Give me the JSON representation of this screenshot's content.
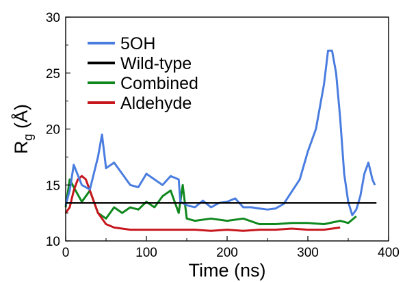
{
  "chart_data": {
    "type": "line",
    "xlabel": "Time (ns)",
    "ylabel_main": "R",
    "ylabel_sub": "g",
    "ylabel_unit": " (Å)",
    "xlim": [
      0,
      400
    ],
    "ylim": [
      10,
      30
    ],
    "xticks": [
      0,
      100,
      200,
      300,
      400
    ],
    "yticks": [
      10,
      15,
      20,
      25,
      30
    ],
    "grid": false,
    "legend_position": "top-left",
    "series": [
      {
        "name": "5OH",
        "color": "#4a7de0",
        "x": [
          0,
          5,
          10,
          20,
          30,
          40,
          45,
          50,
          60,
          70,
          80,
          90,
          100,
          110,
          120,
          130,
          140,
          142,
          150,
          160,
          170,
          180,
          190,
          200,
          210,
          220,
          230,
          240,
          250,
          260,
          270,
          280,
          290,
          300,
          310,
          320,
          325,
          330,
          335,
          340,
          345,
          350,
          355,
          360,
          365,
          370,
          375,
          380,
          383
        ],
        "y": [
          13.2,
          14.5,
          16.8,
          15.0,
          14.6,
          17.5,
          19.5,
          16.5,
          17.0,
          16.0,
          15.0,
          14.8,
          16.0,
          15.5,
          15.0,
          15.8,
          15.5,
          13.5,
          13.2,
          13.0,
          13.6,
          13.0,
          13.4,
          13.5,
          13.8,
          13.0,
          13.0,
          12.9,
          12.8,
          12.9,
          13.3,
          14.4,
          15.5,
          18.0,
          20.0,
          24.0,
          27.0,
          27.0,
          25.0,
          21.0,
          16.0,
          13.5,
          12.3,
          12.8,
          14.0,
          16.0,
          17.0,
          15.5,
          15.0
        ]
      },
      {
        "name": "Wild-type",
        "color": "#000000",
        "x": [
          0,
          385
        ],
        "y": [
          13.4,
          13.4
        ]
      },
      {
        "name": "Combined",
        "color": "#10881e",
        "x": [
          0,
          5,
          10,
          20,
          30,
          40,
          50,
          60,
          70,
          80,
          90,
          100,
          110,
          120,
          130,
          140,
          145,
          150,
          160,
          180,
          200,
          220,
          240,
          260,
          280,
          300,
          320,
          340,
          350,
          360
        ],
        "y": [
          13.0,
          15.5,
          14.8,
          13.5,
          14.5,
          12.5,
          12.0,
          13.0,
          12.5,
          13.0,
          12.8,
          13.5,
          13.0,
          14.0,
          14.5,
          12.5,
          15.0,
          12.0,
          11.8,
          12.0,
          11.8,
          12.0,
          11.5,
          11.5,
          11.6,
          11.6,
          11.5,
          11.8,
          11.6,
          12.2
        ]
      },
      {
        "name": "Aldehyde",
        "color": "#c8161d",
        "x": [
          0,
          5,
          10,
          15,
          20,
          25,
          30,
          40,
          50,
          60,
          80,
          100,
          120,
          140,
          160,
          180,
          200,
          220,
          240,
          260,
          280,
          300,
          320,
          340
        ],
        "y": [
          12.5,
          13.0,
          14.5,
          15.5,
          15.8,
          15.5,
          14.5,
          12.5,
          11.5,
          11.2,
          11.0,
          11.0,
          11.0,
          11.0,
          11.0,
          10.9,
          11.0,
          10.9,
          11.0,
          11.0,
          11.1,
          11.0,
          11.0,
          11.2
        ]
      }
    ]
  }
}
